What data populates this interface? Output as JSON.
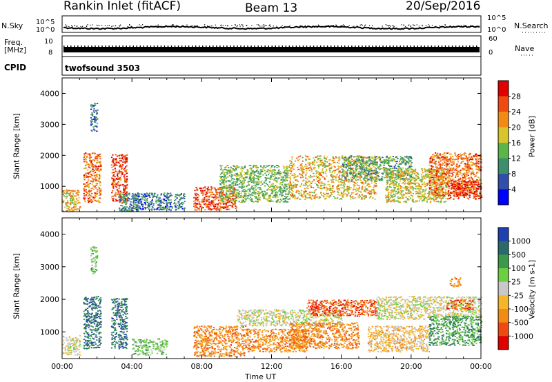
{
  "header": {
    "station": "Rankin Inlet (fitACF)",
    "beam": "Beam 13",
    "date": "20/Sep/2016"
  },
  "nsky_panel": {
    "label": "N.Sky",
    "right_label": "N.Search",
    "ticks_left": [
      "10^5",
      "10^0"
    ],
    "ticks_right": [
      "10^5",
      "10^0"
    ]
  },
  "freq_panel": {
    "label_line1": "Freq.",
    "label_line2": "[MHz]",
    "ticks_left": [
      "10",
      "8"
    ],
    "ticks_right": [
      "60",
      "0"
    ],
    "right_label": "Nave"
  },
  "cpid_panel": {
    "label": "CPID",
    "value": "twofsound 3503"
  },
  "chart_data": [
    {
      "type": "heatmap",
      "title": "Power",
      "ylabel": "Slant Range [km]",
      "ylim": [
        180,
        4500
      ],
      "yticks": [
        1000,
        2000,
        3000,
        4000
      ],
      "xlim": [
        0,
        24
      ],
      "colorbar_label": "Power [dB]",
      "colorbar_ticks": [
        "28",
        "24",
        "20",
        "16",
        "12",
        "8",
        "4"
      ],
      "colors": [
        "#0000ff",
        "#2f4fa8",
        "#3c8f6b",
        "#5ab648",
        "#d6c629",
        "#f28a16",
        "#f04a10",
        "#e00000"
      ],
      "blobs": [
        {
          "t": [
            0.0,
            1.0
          ],
          "r": [
            200,
            900
          ],
          "v": 18
        },
        {
          "t": [
            1.2,
            2.2
          ],
          "r": [
            500,
            2100
          ],
          "v": 22
        },
        {
          "t": [
            2.8,
            3.7
          ],
          "r": [
            500,
            2050
          ],
          "v": 24
        },
        {
          "t": [
            1.6,
            2.0
          ],
          "r": [
            2800,
            3700
          ],
          "v": 6
        },
        {
          "t": [
            3.2,
            4.4
          ],
          "r": [
            200,
            800
          ],
          "v": 8
        },
        {
          "t": [
            4.0,
            7.0
          ],
          "r": [
            250,
            800
          ],
          "v": 6
        },
        {
          "t": [
            7.5,
            10.0
          ],
          "r": [
            250,
            1000
          ],
          "v": 24
        },
        {
          "t": [
            9.0,
            13.0
          ],
          "r": [
            500,
            1700
          ],
          "v": 12
        },
        {
          "t": [
            13.0,
            18.0
          ],
          "r": [
            600,
            2000
          ],
          "v": 18
        },
        {
          "t": [
            16.0,
            20.0
          ],
          "r": [
            1200,
            2000
          ],
          "v": 10
        },
        {
          "t": [
            18.5,
            22.0
          ],
          "r": [
            500,
            1600
          ],
          "v": 16
        },
        {
          "t": [
            21.0,
            24.0
          ],
          "r": [
            700,
            2100
          ],
          "v": 22
        },
        {
          "t": [
            22.0,
            24.0
          ],
          "r": [
            600,
            1200
          ],
          "v": 26
        }
      ]
    },
    {
      "type": "heatmap",
      "title": "Velocity",
      "ylabel": "Slant Range [km]",
      "xlabel": "Time UT",
      "ylim": [
        180,
        4500
      ],
      "yticks": [
        1000,
        2000,
        3000,
        4000
      ],
      "xlim": [
        0,
        24
      ],
      "xticks": [
        "00:00",
        "04:00",
        "08:00",
        "12:00",
        "16:00",
        "20:00",
        "00:00"
      ],
      "colorbar_label": "Velocity [m s-1]",
      "colorbar_ticks": [
        "1000",
        "500",
        "100",
        "25",
        "-25",
        "-100",
        "-500",
        "-1000"
      ],
      "colors": [
        "#2140b0",
        "#2a6a6a",
        "#3a9a4a",
        "#6ccf3f",
        "#c8c8c8",
        "#f6b62a",
        "#f28a16",
        "#f04a10",
        "#e00000"
      ],
      "blobs": [
        {
          "t": [
            0.0,
            1.0
          ],
          "r": [
            300,
            900
          ],
          "v": 4
        },
        {
          "t": [
            1.2,
            2.2
          ],
          "r": [
            500,
            2100
          ],
          "v": 1
        },
        {
          "t": [
            2.8,
            3.7
          ],
          "r": [
            500,
            2050
          ],
          "v": 1
        },
        {
          "t": [
            1.6,
            2.0
          ],
          "r": [
            2800,
            3700
          ],
          "v": 3
        },
        {
          "t": [
            4.0,
            6.0
          ],
          "r": [
            300,
            800
          ],
          "v": 3
        },
        {
          "t": [
            7.5,
            10.5
          ],
          "r": [
            250,
            1200
          ],
          "v": 6
        },
        {
          "t": [
            10.5,
            14.0
          ],
          "r": [
            400,
            1100
          ],
          "v": 6
        },
        {
          "t": [
            10.0,
            16.0
          ],
          "r": [
            1200,
            1700
          ],
          "v": 4
        },
        {
          "t": [
            14.0,
            18.0
          ],
          "r": [
            1500,
            2000
          ],
          "v": 7
        },
        {
          "t": [
            13.0,
            17.0
          ],
          "r": [
            500,
            1300
          ],
          "v": 6
        },
        {
          "t": [
            18.0,
            24.0
          ],
          "r": [
            1400,
            2100
          ],
          "v": 4
        },
        {
          "t": [
            17.5,
            21.0
          ],
          "r": [
            400,
            1200
          ],
          "v": 5
        },
        {
          "t": [
            21.0,
            24.0
          ],
          "r": [
            600,
            1500
          ],
          "v": 2
        },
        {
          "t": [
            22.0,
            23.5
          ],
          "r": [
            1700,
            2000
          ],
          "v": 7
        },
        {
          "t": [
            22.2,
            22.8
          ],
          "r": [
            2400,
            2700
          ],
          "v": 6
        }
      ]
    }
  ]
}
